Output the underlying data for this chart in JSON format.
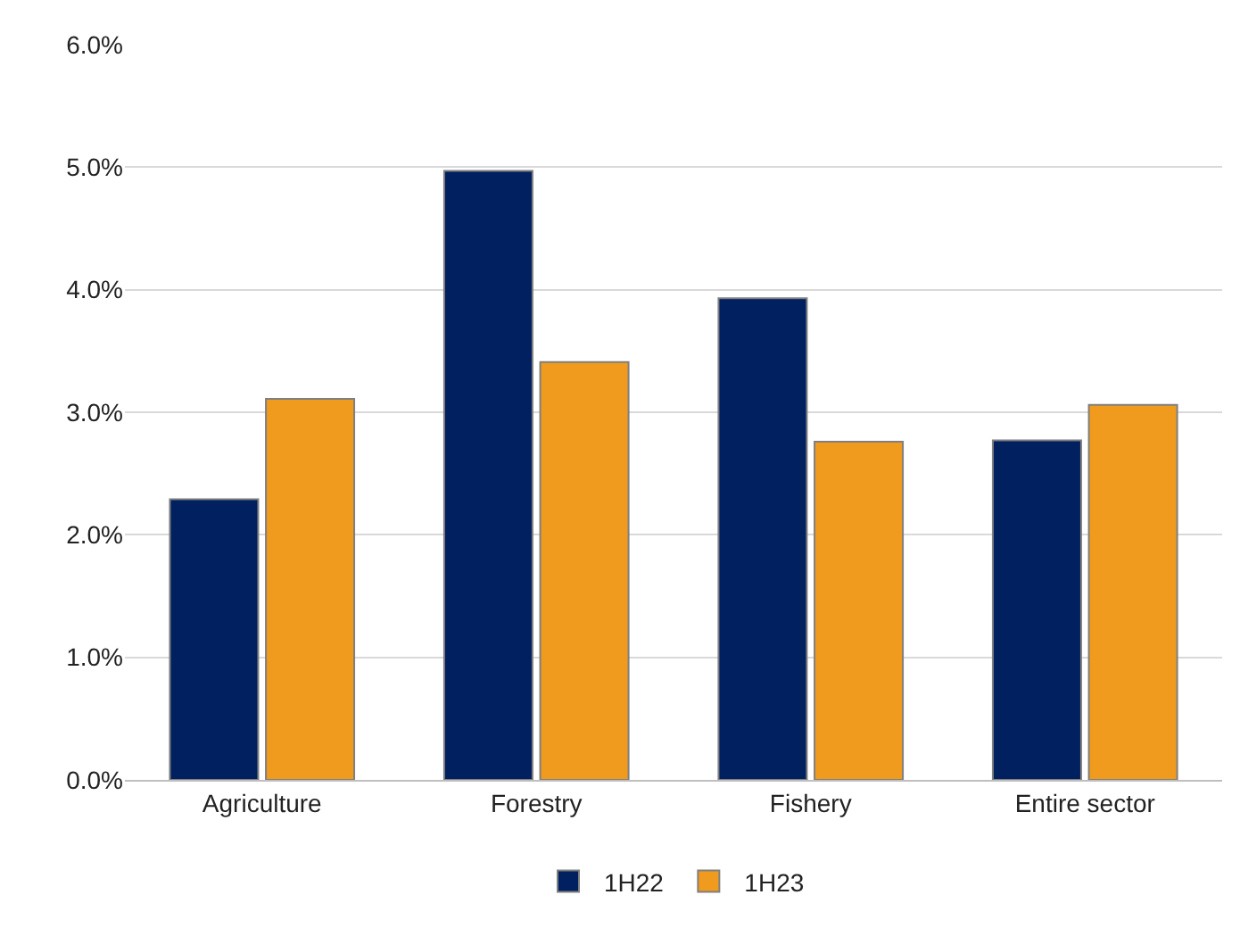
{
  "chart_data": {
    "type": "bar",
    "categories": [
      "Agriculture",
      "Forestry",
      "Fishery",
      "Entire sector"
    ],
    "series": [
      {
        "name": "1H22",
        "color": "#002060",
        "values": [
          2.29,
          4.97,
          3.93,
          2.77
        ]
      },
      {
        "name": "1H23",
        "color": "#f09a1e",
        "values": [
          3.11,
          3.41,
          2.76,
          3.06
        ]
      }
    ],
    "ylim": [
      0,
      6
    ],
    "yticks": [
      {
        "value": 0,
        "label": "0.0%"
      },
      {
        "value": 1,
        "label": "1.0%"
      },
      {
        "value": 2,
        "label": "2.0%"
      },
      {
        "value": 3,
        "label": "3.0%"
      },
      {
        "value": 4,
        "label": "4.0%"
      },
      {
        "value": 5,
        "label": "5.0%"
      },
      {
        "value": 6,
        "label": "6.0%"
      }
    ],
    "grid": "y",
    "legend": "bottom"
  }
}
